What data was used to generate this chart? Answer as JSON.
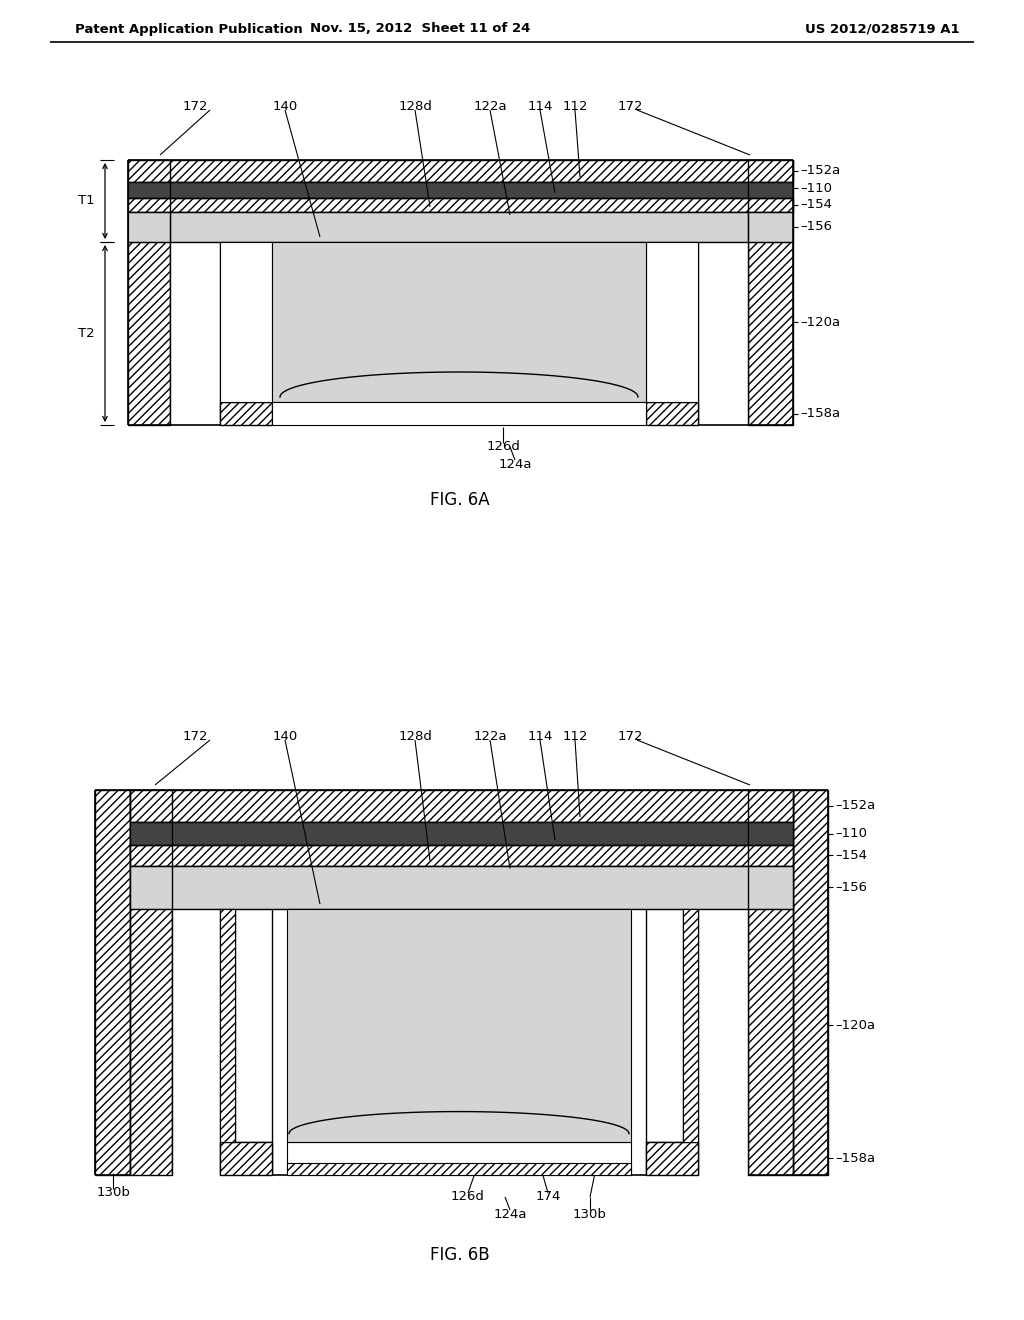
{
  "header_left": "Patent Application Publication",
  "header_mid": "Nov. 15, 2012  Sheet 11 of 24",
  "header_right": "US 2012/0285719 A1",
  "fig6a_caption": "FIG. 6A",
  "fig6b_caption": "FIG. 6B",
  "bg_color": "#ffffff",
  "label_fontsize": 9.5,
  "caption_fontsize": 12,
  "header_fontsize": 9.5,
  "dot_fill": "#d4d4d4",
  "dark_fill": "#444444"
}
